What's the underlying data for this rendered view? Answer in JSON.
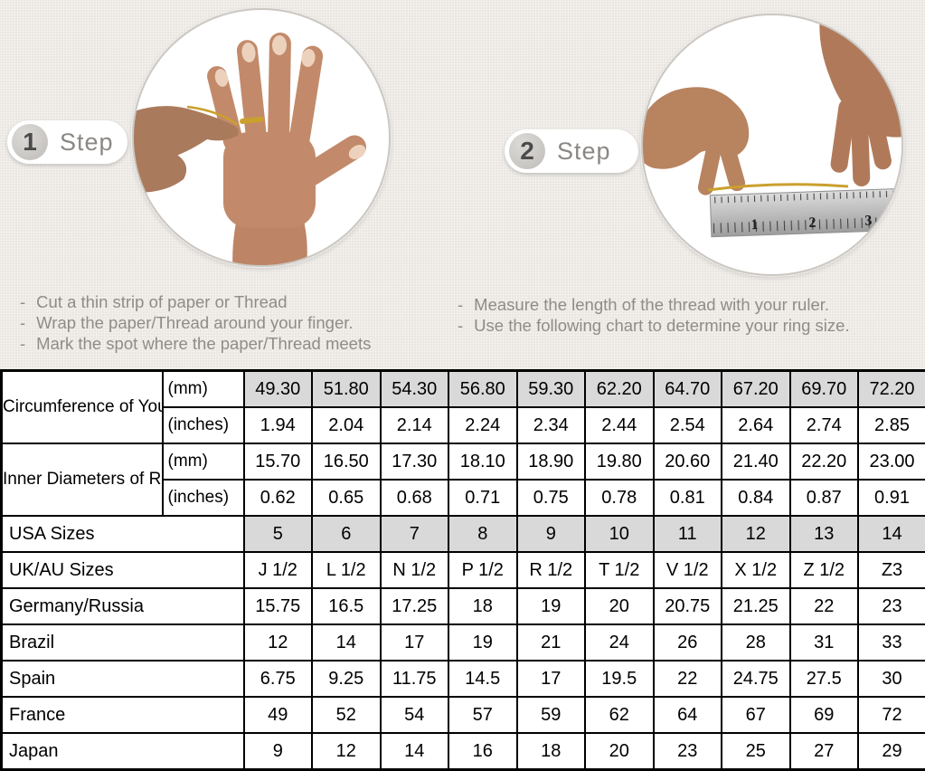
{
  "steps": [
    {
      "number": "1",
      "label": "Step",
      "bullet_marker": "-",
      "bullets": [
        "Cut a thin strip of paper or Thread",
        "Wrap the paper/Thread around your finger.",
        "Mark the spot where the paper/Thread meets"
      ]
    },
    {
      "number": "2",
      "label": "Step",
      "bullet_marker": "-",
      "bullets": [
        "Measure the length of the thread with your ruler.",
        "Use the following chart to determine your ring size."
      ]
    }
  ],
  "photos": {
    "step1_description": "Hand with a thread ring around the ring finger",
    "step2_description": "Two hands measuring a gold thread with a ruler",
    "ruler_numbers": [
      "1",
      "2",
      "3"
    ]
  },
  "table": {
    "groups": [
      {
        "label": "Circumference of Your Finger",
        "rows": [
          {
            "unit": "(mm)",
            "shaded": true,
            "values": [
              "49.30",
              "51.80",
              "54.30",
              "56.80",
              "59.30",
              "62.20",
              "64.70",
              "67.20",
              "69.70",
              "72.20"
            ]
          },
          {
            "unit": "(inches)",
            "shaded": false,
            "values": [
              "1.94",
              "2.04",
              "2.14",
              "2.24",
              "2.34",
              "2.44",
              "2.54",
              "2.64",
              "2.74",
              "2.85"
            ]
          }
        ]
      },
      {
        "label": "Inner Diameters of Rings",
        "rows": [
          {
            "unit": "(mm)",
            "shaded": false,
            "values": [
              "15.70",
              "16.50",
              "17.30",
              "18.10",
              "18.90",
              "19.80",
              "20.60",
              "21.40",
              "22.20",
              "23.00"
            ]
          },
          {
            "unit": "(inches)",
            "shaded": false,
            "values": [
              "0.62",
              "0.65",
              "0.68",
              "0.71",
              "0.75",
              "0.78",
              "0.81",
              "0.84",
              "0.87",
              "0.91"
            ]
          }
        ]
      }
    ],
    "rows": [
      {
        "label": "USA Sizes",
        "shaded": true,
        "values": [
          "5",
          "6",
          "7",
          "8",
          "9",
          "10",
          "11",
          "12",
          "13",
          "14"
        ]
      },
      {
        "label": "UK/AU Sizes",
        "shaded": false,
        "values": [
          "J 1/2",
          "L 1/2",
          "N 1/2",
          "P 1/2",
          "R 1/2",
          "T 1/2",
          "V 1/2",
          "X 1/2",
          "Z 1/2",
          "Z3"
        ]
      },
      {
        "label": "Germany/Russia",
        "shaded": false,
        "values": [
          "15.75",
          "16.5",
          "17.25",
          "18",
          "19",
          "20",
          "20.75",
          "21.25",
          "22",
          "23"
        ]
      },
      {
        "label": "Brazil",
        "shaded": false,
        "values": [
          "12",
          "14",
          "17",
          "19",
          "21",
          "24",
          "26",
          "28",
          "31",
          "33"
        ]
      },
      {
        "label": "Spain",
        "shaded": false,
        "values": [
          "6.75",
          "9.25",
          "11.75",
          "14.5",
          "17",
          "19.5",
          "22",
          "24.75",
          "27.5",
          "30"
        ]
      },
      {
        "label": "France",
        "shaded": false,
        "values": [
          "49",
          "52",
          "54",
          "57",
          "59",
          "62",
          "64",
          "67",
          "69",
          "72"
        ]
      },
      {
        "label": "Japan",
        "shaded": false,
        "values": [
          "9",
          "12",
          "14",
          "16",
          "18",
          "20",
          "23",
          "25",
          "27",
          "29"
        ]
      }
    ]
  },
  "colors": {
    "background": "#eae7e2",
    "cell_shade": "#d9d9d9",
    "table_border": "#000000",
    "gold_thread": "#caa02e"
  }
}
